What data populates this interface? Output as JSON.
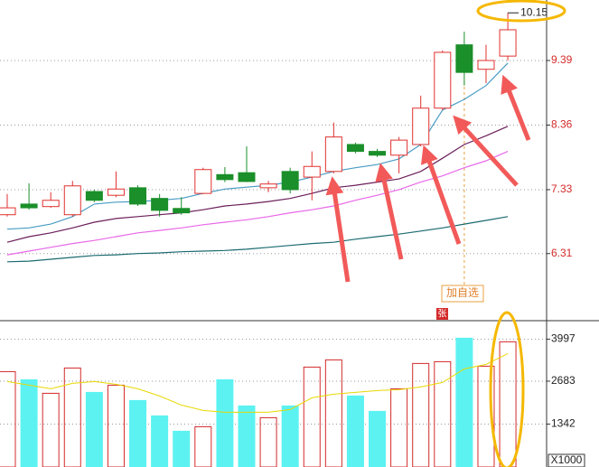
{
  "chart_data": [
    {
      "type": "candlestick",
      "open": [
        6.93,
        7.1,
        7.06,
        6.93,
        7.3,
        7.24,
        7.36,
        7.19,
        7.03,
        7.27,
        7.57,
        7.6,
        7.36,
        7.62,
        7.53,
        7.62,
        8.05,
        7.94,
        7.88,
        8.05,
        8.63,
        9.64,
        9.25,
        9.46
      ],
      "high": [
        7.26,
        7.43,
        7.29,
        7.47,
        7.33,
        7.62,
        7.4,
        7.26,
        7.21,
        7.68,
        7.69,
        8.02,
        7.47,
        7.68,
        7.94,
        8.4,
        8.08,
        7.98,
        8.17,
        8.83,
        9.55,
        9.85,
        9.64,
        10.15
      ],
      "low": [
        6.9,
        7.01,
        7.04,
        6.9,
        7.13,
        7.21,
        7.07,
        6.9,
        6.93,
        7.26,
        7.45,
        7.45,
        7.29,
        7.27,
        7.16,
        7.59,
        7.91,
        7.85,
        7.59,
        8.02,
        8.6,
        8.99,
        9.03,
        9.39
      ],
      "close": [
        7.04,
        7.04,
        7.16,
        7.39,
        7.16,
        7.34,
        7.1,
        7.0,
        6.96,
        7.65,
        7.49,
        7.46,
        7.42,
        7.33,
        7.7,
        8.17,
        7.94,
        7.88,
        8.12,
        8.63,
        9.52,
        9.2,
        9.39,
        9.88
      ],
      "up_color": "#e0312f",
      "down_color": "#1a8f2a",
      "lines": [
        {
          "color": "#4a9cc4",
          "values": [
            6.7,
            6.72,
            6.78,
            6.9,
            7.1,
            7.13,
            7.14,
            7.16,
            7.19,
            7.27,
            7.34,
            7.37,
            7.4,
            7.45,
            7.53,
            7.62,
            7.68,
            7.73,
            7.82,
            8.05,
            8.6,
            8.77,
            8.99,
            9.35
          ]
        },
        {
          "color": "#6b1e5a",
          "values": [
            6.49,
            6.58,
            6.64,
            6.72,
            6.81,
            6.87,
            6.9,
            6.93,
            6.96,
            7.01,
            7.07,
            7.1,
            7.14,
            7.19,
            7.27,
            7.36,
            7.4,
            7.45,
            7.5,
            7.62,
            7.83,
            8.05,
            8.19,
            8.34
          ]
        },
        {
          "color": "#e868e8",
          "values": [
            6.29,
            6.35,
            6.41,
            6.47,
            6.52,
            6.58,
            6.64,
            6.68,
            6.72,
            6.77,
            6.81,
            6.85,
            6.9,
            6.96,
            7.01,
            7.07,
            7.16,
            7.24,
            7.33,
            7.45,
            7.55,
            7.68,
            7.79,
            7.94
          ]
        },
        {
          "color": "#1a6a70",
          "values": [
            6.18,
            6.19,
            6.22,
            6.25,
            6.28,
            6.29,
            6.31,
            6.32,
            6.34,
            6.35,
            6.36,
            6.38,
            6.41,
            6.44,
            6.47,
            6.49,
            6.54,
            6.58,
            6.62,
            6.67,
            6.72,
            6.78,
            6.84,
            6.9
          ]
        }
      ],
      "annotation": {
        "value": 10.15,
        "label": "10.15"
      },
      "crosshair": 21,
      "ylim": [
        5.24,
        10.355
      ],
      "yticks": [
        9.39,
        8.36,
        7.33,
        6.31
      ],
      "grid": true
    },
    {
      "type": "bar",
      "values": [
        2981,
        2727,
        2304,
        3094,
        2332,
        2558,
        2078,
        1598,
        1118,
        1259,
        2727,
        1909,
        1541,
        1909,
        3123,
        3349,
        2219,
        1739,
        2445,
        3236,
        3292,
        4026,
        3151,
        3913
      ],
      "up_color": "#d42a2a",
      "down_color": "#5cf2f2",
      "line": {
        "color": "#e8d800",
        "values": [
          2671,
          2558,
          2445,
          2614,
          2671,
          2586,
          2445,
          2219,
          1937,
          1767,
          1711,
          1711,
          1711,
          1796,
          2163,
          2276,
          2332,
          2389,
          2417,
          2501,
          2643,
          3066,
          3207,
          3546
        ]
      },
      "ylim": [
        0,
        4433
      ],
      "yticks": [
        3997,
        2683,
        1342
      ],
      "unit": "X1000",
      "grid": true
    }
  ],
  "buttons": {
    "add_watchlist": "加自选",
    "badge": "张"
  }
}
